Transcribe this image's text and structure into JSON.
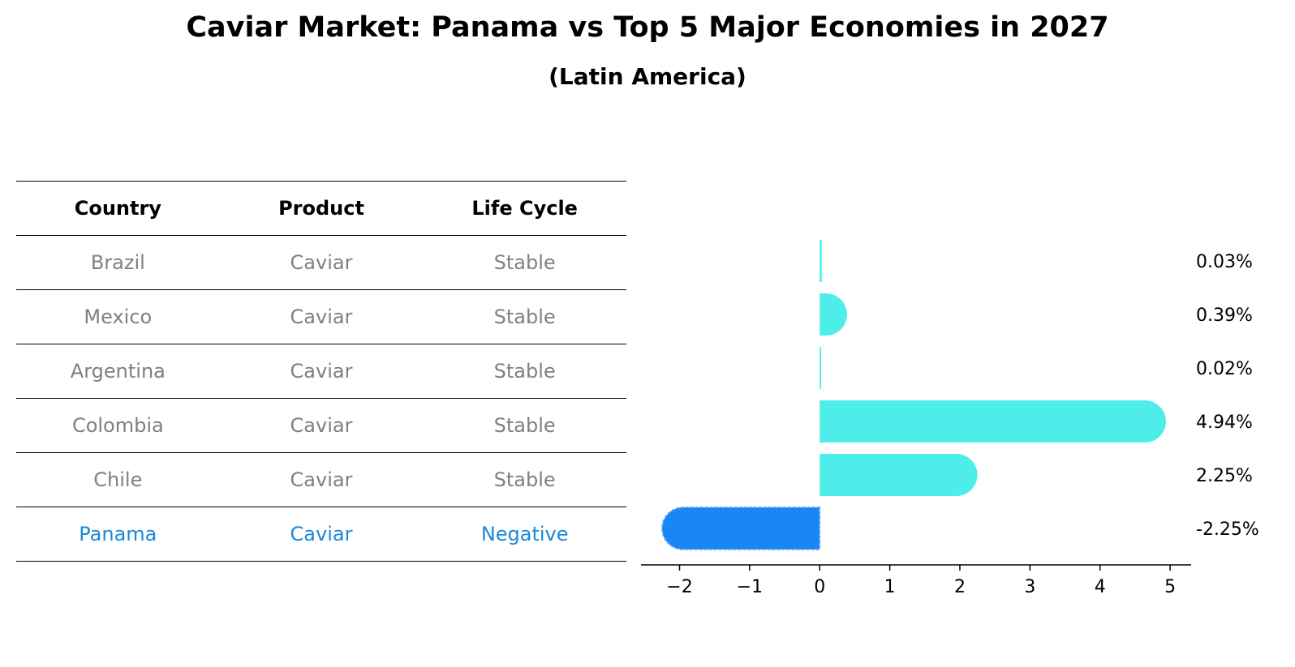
{
  "title": "Caviar Market: Panama vs Top 5 Major Economies in 2027",
  "subtitle": "(Latin America)",
  "table": {
    "headers": [
      "Country",
      "Product",
      "Life Cycle"
    ],
    "rows": [
      [
        "Brazil",
        "Caviar",
        "Stable"
      ],
      [
        "Mexico",
        "Caviar",
        "Stable"
      ],
      [
        "Argentina",
        "Caviar",
        "Stable"
      ],
      [
        "Colombia",
        "Caviar",
        "Stable"
      ],
      [
        "Chile",
        "Caviar",
        "Stable"
      ],
      [
        "Panama",
        "Caviar",
        "Negative"
      ]
    ],
    "highlight_color": "#1a88d8",
    "normal_color": "#808080"
  },
  "chart_data": {
    "type": "bar",
    "orientation": "horizontal",
    "categories": [
      "Brazil",
      "Mexico",
      "Argentina",
      "Colombia",
      "Chile",
      "Panama"
    ],
    "values": [
      0.03,
      0.39,
      0.02,
      4.94,
      2.25,
      -2.25
    ],
    "value_labels": [
      "0.03%",
      "0.39%",
      "0.02%",
      "4.94%",
      "2.25%",
      "-2.25%"
    ],
    "xlim": [
      -2.55,
      5.3
    ],
    "xticks": [
      -2,
      -1,
      0,
      1,
      2,
      3,
      4,
      5
    ],
    "xtick_labels": [
      "−2",
      "−1",
      "0",
      "1",
      "2",
      "3",
      "4",
      "5"
    ],
    "colors": [
      "#4deee9",
      "#4deee9",
      "#4deee9",
      "#4deee9",
      "#4deee9",
      "#1a86f5"
    ],
    "grid": false,
    "legend": "none"
  }
}
